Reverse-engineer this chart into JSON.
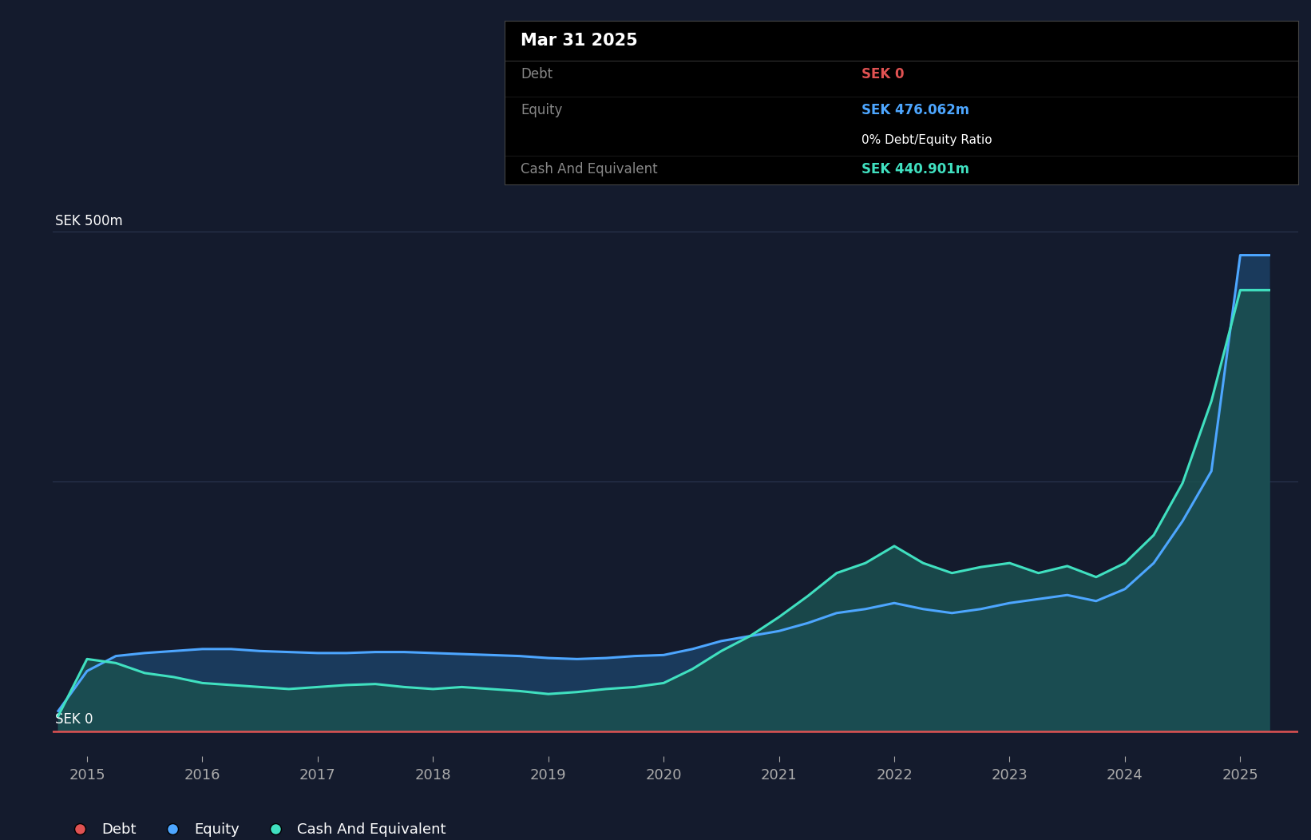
{
  "background_color": "#141b2d",
  "plot_bg_color": "#141b2d",
  "grid_color": "#2a3550",
  "y_label_500": "SEK 500m",
  "y_label_0": "SEK 0",
  "x_ticks": [
    2015,
    2016,
    2017,
    2018,
    2019,
    2020,
    2021,
    2022,
    2023,
    2024,
    2025
  ],
  "ylim": [
    -25,
    580
  ],
  "xlim": [
    2014.7,
    2025.5
  ],
  "debt_color": "#e05252",
  "equity_color": "#4da6ff",
  "cash_color": "#40e0c0",
  "fill_equity_color": "#1a3a5c",
  "fill_cash_color": "#1a5050",
  "legend_dot_debt": "#e05252",
  "legend_dot_equity": "#4da6ff",
  "legend_dot_cash": "#40e0c0",
  "tooltip": {
    "title": "Mar 31 2025",
    "debt_label": "Debt",
    "debt_value": "SEK 0",
    "debt_value_color": "#e05252",
    "equity_label": "Equity",
    "equity_value": "SEK 476.062m",
    "equity_value_color": "#4da6ff",
    "ratio_text": "0% Debt/Equity Ratio",
    "cash_label": "Cash And Equivalent",
    "cash_value": "SEK 440.901m",
    "cash_value_color": "#40e0c0",
    "bg_color": "#000000",
    "title_color": "#ffffff",
    "label_color": "#888888",
    "border_color": "#333333"
  },
  "equity_x": [
    2014.75,
    2015.0,
    2015.25,
    2015.5,
    2015.75,
    2016.0,
    2016.25,
    2016.5,
    2016.75,
    2017.0,
    2017.25,
    2017.5,
    2017.75,
    2018.0,
    2018.25,
    2018.5,
    2018.75,
    2019.0,
    2019.25,
    2019.5,
    2019.75,
    2020.0,
    2020.25,
    2020.5,
    2020.75,
    2021.0,
    2021.25,
    2021.5,
    2021.75,
    2022.0,
    2022.25,
    2022.5,
    2022.75,
    2023.0,
    2023.25,
    2023.5,
    2023.75,
    2024.0,
    2024.25,
    2024.5,
    2024.75,
    2025.0,
    2025.25
  ],
  "equity_y": [
    20,
    60,
    75,
    78,
    80,
    82,
    82,
    80,
    79,
    78,
    78,
    79,
    79,
    78,
    77,
    76,
    75,
    73,
    72,
    73,
    75,
    76,
    82,
    90,
    95,
    100,
    108,
    118,
    122,
    128,
    122,
    118,
    122,
    128,
    132,
    136,
    130,
    142,
    168,
    210,
    260,
    476,
    476
  ],
  "cash_x": [
    2014.75,
    2015.0,
    2015.25,
    2015.5,
    2015.75,
    2016.0,
    2016.25,
    2016.5,
    2016.75,
    2017.0,
    2017.25,
    2017.5,
    2017.75,
    2018.0,
    2018.25,
    2018.5,
    2018.75,
    2019.0,
    2019.25,
    2019.5,
    2019.75,
    2020.0,
    2020.25,
    2020.5,
    2020.75,
    2021.0,
    2021.25,
    2021.5,
    2021.75,
    2022.0,
    2022.25,
    2022.5,
    2022.75,
    2023.0,
    2023.25,
    2023.5,
    2023.75,
    2024.0,
    2024.25,
    2024.5,
    2024.75,
    2025.0,
    2025.25
  ],
  "cash_y": [
    15,
    72,
    68,
    58,
    54,
    48,
    46,
    44,
    42,
    44,
    46,
    47,
    44,
    42,
    44,
    42,
    40,
    37,
    39,
    42,
    44,
    48,
    62,
    80,
    95,
    114,
    135,
    158,
    168,
    185,
    168,
    158,
    164,
    168,
    158,
    165,
    154,
    168,
    196,
    248,
    330,
    441,
    441
  ],
  "debt_color_line": "#e05252"
}
